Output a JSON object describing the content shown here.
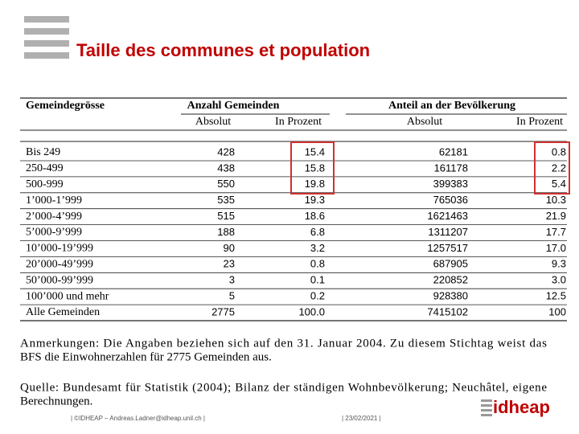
{
  "header": {
    "title": "Taille des communes et population"
  },
  "table": {
    "group_headers": [
      "Gemeindegrösse",
      "Anzahl Gemeinden",
      "Anteil an der Bevölkerung"
    ],
    "subheaders": [
      "Absolut",
      "In Prozent",
      "Absolut",
      "In Prozent"
    ],
    "rows": [
      [
        "Bis 249",
        "428",
        "15.4",
        "62181",
        "0.8"
      ],
      [
        "250-499",
        "438",
        "15.8",
        "161178",
        "2.2"
      ],
      [
        "500-999",
        "550",
        "19.8",
        "399383",
        "5.4"
      ],
      [
        "1’000-1’999",
        "535",
        "19.3",
        "765036",
        "10.3"
      ],
      [
        "2’000-4’999",
        "515",
        "18.6",
        "1621463",
        "21.9"
      ],
      [
        "5’000-9’999",
        "188",
        "6.8",
        "1311207",
        "17.7"
      ],
      [
        "10’000-19’999",
        "90",
        "3.2",
        "1257517",
        "17.0"
      ],
      [
        "20’000-49’999",
        "23",
        "0.8",
        "687905",
        "9.3"
      ],
      [
        "50’000-99’999",
        "3",
        "0.1",
        "220852",
        "3.0"
      ],
      [
        "100’000 und mehr",
        "5",
        "0.2",
        "928380",
        "12.5"
      ],
      [
        "Alle Gemeinden",
        "2775",
        "100.0",
        "7415102",
        "100"
      ]
    ]
  },
  "notes": [
    "Anmerkungen: Die Angaben beziehen sich auf den 31. Januar 2004. Zu diesem Stichtag weist das",
    "BFS die Einwohnerzahlen für 2775 Gemeinden aus."
  ],
  "source": [
    "Quelle: Bundesamt für Statistik (2004); Bilanz der ständigen Wohnbevölkerung; Neuchâtel, eigene",
    "Berechnungen."
  ],
  "footer": {
    "author": "| ©IDHEAP – Andreas.Ladner@idheap.unil.ch |",
    "date": "| 23/02/2021 |",
    "logo": "idheap"
  }
}
